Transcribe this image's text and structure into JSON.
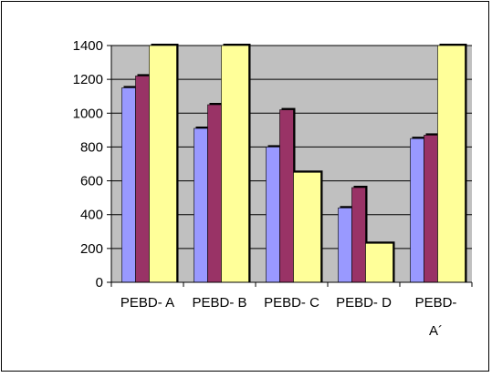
{
  "chart_data": {
    "type": "bar",
    "title": "",
    "xlabel": "",
    "ylabel": "",
    "ylim": [
      0,
      1400
    ],
    "yticks": [
      0,
      200,
      400,
      600,
      800,
      1000,
      1200,
      1400
    ],
    "ytick_labels": [
      "0",
      "200",
      "400",
      "600",
      "800",
      "1000",
      "1200",
      "1400"
    ],
    "grid": true,
    "legend": "none",
    "categories": [
      "PEBD- A",
      "PEBD- B",
      "PEBD- C",
      "PEBD- D",
      "PEBD- A´"
    ],
    "category_display": [
      [
        "PEBD- A"
      ],
      [
        "PEBD- B"
      ],
      [
        "PEBD- C"
      ],
      [
        "PEBD- D"
      ],
      [
        "PEBD-",
        "A´"
      ]
    ],
    "series": [
      {
        "values": [
          1150,
          910,
          800,
          440,
          850
        ],
        "color": "#9999ff"
      },
      {
        "values": [
          1220,
          1050,
          1020,
          560,
          870
        ],
        "color": "#993366"
      },
      {
        "values": [
          1400,
          1400,
          650,
          230,
          1400
        ],
        "color": "#ffff99"
      }
    ],
    "plot_background": "#c0c0c0"
  }
}
